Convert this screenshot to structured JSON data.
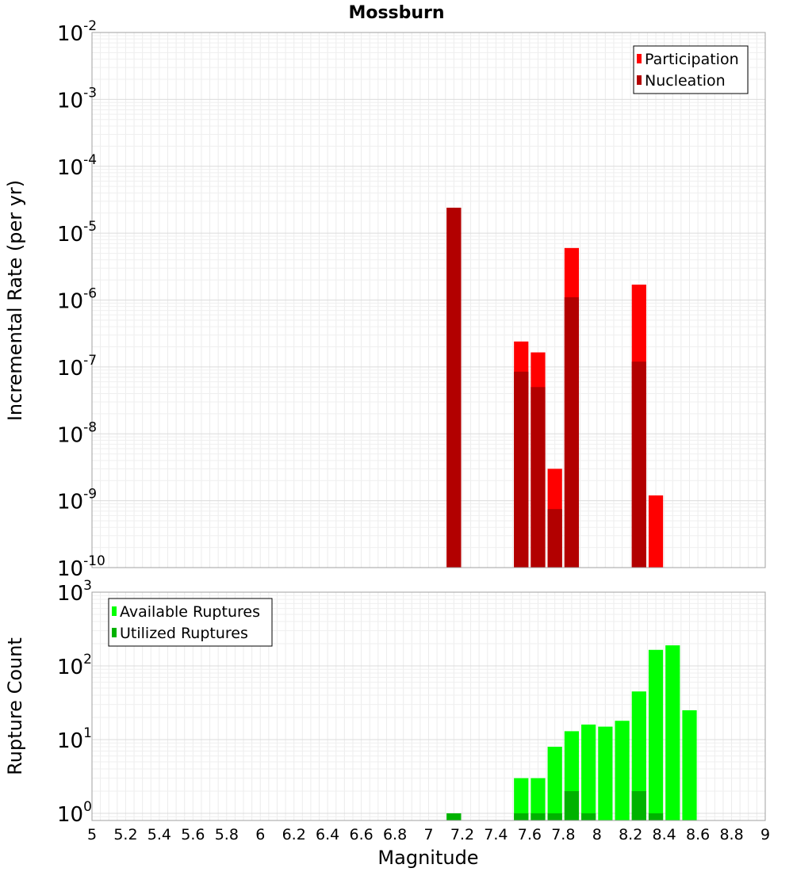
{
  "chart_data": [
    {
      "type": "bar",
      "title": "Mossburn",
      "xlabel": "Magnitude",
      "ylabel": "Incremental Rate (per yr)",
      "yscale": "log",
      "xlim": [
        5,
        9
      ],
      "ylim": [
        1e-10,
        0.01
      ],
      "grid": true,
      "legend_position": "top-right",
      "bin_width": 0.1,
      "series": [
        {
          "name": "Participation",
          "color": "#ff0000",
          "points": [
            {
              "x": 7.15,
              "y": 2.4e-05
            },
            {
              "x": 7.55,
              "y": 2.4e-07
            },
            {
              "x": 7.65,
              "y": 1.65e-07
            },
            {
              "x": 7.75,
              "y": 3e-09
            },
            {
              "x": 7.85,
              "y": 6e-06
            },
            {
              "x": 8.25,
              "y": 1.7e-06
            },
            {
              "x": 8.35,
              "y": 1.2e-09
            }
          ]
        },
        {
          "name": "Nucleation",
          "color": "#b20000",
          "points": [
            {
              "x": 7.15,
              "y": 2.4e-05
            },
            {
              "x": 7.55,
              "y": 8.5e-08
            },
            {
              "x": 7.65,
              "y": 5e-08
            },
            {
              "x": 7.75,
              "y": 7.5e-10
            },
            {
              "x": 7.85,
              "y": 1.1e-06
            },
            {
              "x": 8.25,
              "y": 1.2e-07
            }
          ]
        }
      ]
    },
    {
      "type": "bar",
      "title": "",
      "xlabel": "Magnitude",
      "ylabel": "Rupture Count",
      "yscale": "log",
      "xlim": [
        5,
        9
      ],
      "ylim": [
        0.8,
        1000
      ],
      "grid": true,
      "legend_position": "top-left",
      "bin_width": 0.1,
      "series": [
        {
          "name": "Available Ruptures",
          "color": "#00ff00",
          "points": [
            {
              "x": 7.15,
              "y": 1
            },
            {
              "x": 7.55,
              "y": 3
            },
            {
              "x": 7.65,
              "y": 3
            },
            {
              "x": 7.75,
              "y": 8
            },
            {
              "x": 7.85,
              "y": 13
            },
            {
              "x": 7.95,
              "y": 16
            },
            {
              "x": 8.05,
              "y": 15
            },
            {
              "x": 8.15,
              "y": 18
            },
            {
              "x": 8.25,
              "y": 45
            },
            {
              "x": 8.35,
              "y": 165
            },
            {
              "x": 8.45,
              "y": 190
            },
            {
              "x": 8.55,
              "y": 25
            }
          ]
        },
        {
          "name": "Utilized Ruptures",
          "color": "#00b200",
          "points": [
            {
              "x": 7.15,
              "y": 1
            },
            {
              "x": 7.55,
              "y": 1
            },
            {
              "x": 7.65,
              "y": 1
            },
            {
              "x": 7.75,
              "y": 1
            },
            {
              "x": 7.85,
              "y": 2
            },
            {
              "x": 7.95,
              "y": 1
            },
            {
              "x": 8.25,
              "y": 2
            },
            {
              "x": 8.35,
              "y": 1
            }
          ]
        }
      ]
    }
  ],
  "x_ticks": [
    "5",
    "5.2",
    "5.4",
    "5.6",
    "5.8",
    "6",
    "6.2",
    "6.4",
    "6.6",
    "6.8",
    "7",
    "7.2",
    "7.4",
    "7.6",
    "7.8",
    "8",
    "8.2",
    "8.4",
    "8.6",
    "8.8",
    "9"
  ],
  "top_y_ticks": [
    {
      "base": "10",
      "exp": "-2"
    },
    {
      "base": "10",
      "exp": "-3"
    },
    {
      "base": "10",
      "exp": "-4"
    },
    {
      "base": "10",
      "exp": "-5"
    },
    {
      "base": "10",
      "exp": "-6"
    },
    {
      "base": "10",
      "exp": "-7"
    },
    {
      "base": "10",
      "exp": "-8"
    },
    {
      "base": "10",
      "exp": "-9"
    },
    {
      "base": "10",
      "exp": "-10"
    }
  ],
  "bottom_y_ticks": [
    {
      "base": "10",
      "exp": "3"
    },
    {
      "base": "10",
      "exp": "2"
    },
    {
      "base": "10",
      "exp": "1"
    },
    {
      "base": "10",
      "exp": "0"
    }
  ]
}
